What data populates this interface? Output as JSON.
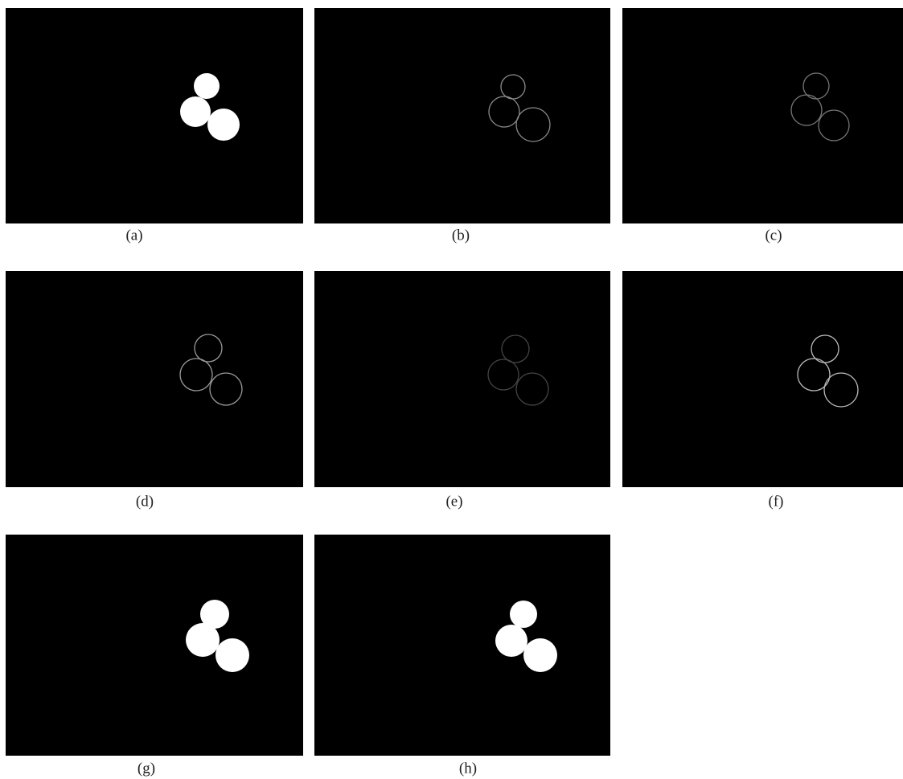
{
  "panels": [
    {
      "label": "(a)"
    },
    {
      "label": "(b)"
    },
    {
      "label": "(c)"
    },
    {
      "label": "(d)"
    },
    {
      "label": "(e)"
    },
    {
      "label": "(f)"
    },
    {
      "label": "(g)"
    },
    {
      "label": "(h)"
    }
  ]
}
